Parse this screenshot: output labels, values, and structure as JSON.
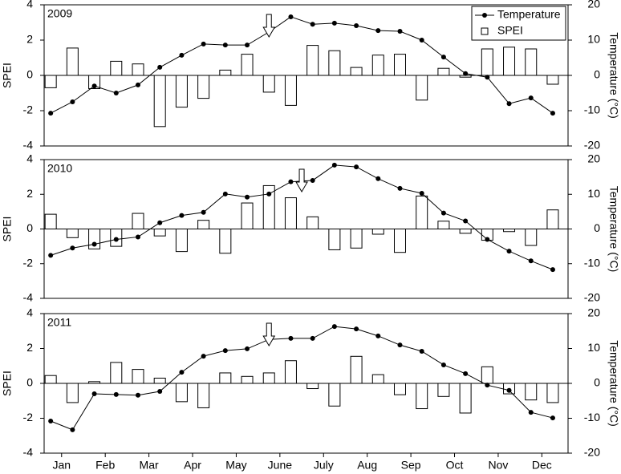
{
  "chart_data": [
    {
      "type": "combo",
      "title": "2009",
      "ylabel": "SPEI",
      "y2label": "Temperature (°C)",
      "x": [
        1,
        2,
        3,
        4,
        5,
        6,
        7,
        8,
        9,
        10,
        11,
        12,
        13,
        14,
        15,
        16,
        17,
        18,
        19,
        20,
        21,
        22,
        23,
        24
      ],
      "xlim": [
        0.7,
        24.7
      ],
      "ylim": [
        -4,
        4
      ],
      "yticks": [
        -4,
        -2,
        0,
        2,
        4
      ],
      "y2lim": [
        -20,
        20
      ],
      "y2ticks": [
        -20,
        -10,
        0,
        10,
        20
      ],
      "legend": "upper right",
      "series": [
        {
          "name": "Temperature",
          "style": "line",
          "axis": "y2",
          "color": "#000000",
          "values": [
            -10.7,
            -7.5,
            -3,
            -5,
            -2.7,
            2.3,
            5.7,
            8.9,
            8.6,
            8.6,
            12.3,
            16.6,
            14.5,
            14.8,
            14.1,
            12.7,
            12.5,
            10,
            5.2,
            0.5,
            -0.5,
            -8,
            -6.4,
            -10.7
          ]
        },
        {
          "name": "SPEI",
          "style": "bar",
          "color": "#ffffff",
          "values": [
            -0.7,
            1.55,
            -0.75,
            0.8,
            0.65,
            -2.9,
            -1.8,
            -1.3,
            0.3,
            1.2,
            -0.95,
            -1.7,
            1.7,
            1.4,
            0.45,
            1.15,
            1.2,
            -1.4,
            0.4,
            -0.1,
            1.5,
            1.6,
            1.5,
            -0.5
          ]
        }
      ]
    },
    {
      "type": "combo",
      "title": "2010",
      "ylabel": "SPEI",
      "y2label": "Temperature (°C)",
      "x": [
        1,
        2,
        3,
        4,
        5,
        6,
        7,
        8,
        9,
        10,
        11,
        12,
        13,
        14,
        15,
        16,
        17,
        18,
        19,
        20,
        21,
        22,
        23,
        24
      ],
      "xlim": [
        0.7,
        24.7
      ],
      "ylim": [
        -4,
        4
      ],
      "yticks": [
        -4,
        -2,
        0,
        2,
        4
      ],
      "y2lim": [
        -20,
        20
      ],
      "y2ticks": [
        -20,
        -10,
        0,
        10,
        20
      ],
      "series": [
        {
          "style": "line",
          "axis": "y2",
          "color": "#000000",
          "values": [
            -7.6,
            -5.5,
            -4.4,
            -3,
            -2.3,
            1.8,
            3.9,
            4.8,
            10.1,
            9.2,
            10.1,
            13.6,
            14,
            18.4,
            17.9,
            14.5,
            11.7,
            10.3,
            4.6,
            2.3,
            -3,
            -6.4,
            -9.2,
            -11.7
          ]
        },
        {
          "style": "bar",
          "color": "#ffffff",
          "values": [
            0.85,
            -0.5,
            -1.15,
            -1,
            0.9,
            -0.4,
            -1.3,
            0.5,
            -1.4,
            1.5,
            2.5,
            1.8,
            0.7,
            -1.2,
            -1.1,
            -0.3,
            -1.35,
            1.9,
            0.45,
            -0.25,
            -0.65,
            -0.15,
            -0.95,
            1.1
          ]
        }
      ]
    },
    {
      "type": "combo",
      "title": "2011",
      "ylabel": "SPEI",
      "y2label": "Temperature (°C)",
      "x": [
        1,
        2,
        3,
        4,
        5,
        6,
        7,
        8,
        9,
        10,
        11,
        12,
        13,
        14,
        15,
        16,
        17,
        18,
        19,
        20,
        21,
        22,
        23,
        24
      ],
      "xlim": [
        0.7,
        24.7
      ],
      "xticks": [
        {
          "value": 1.5,
          "label": "Jan"
        },
        {
          "value": 3.5,
          "label": "Feb"
        },
        {
          "value": 5.5,
          "label": "Mar"
        },
        {
          "value": 7.5,
          "label": "Apr"
        },
        {
          "value": 9.5,
          "label": "May"
        },
        {
          "value": 11.5,
          "label": "June"
        },
        {
          "value": 13.5,
          "label": "July"
        },
        {
          "value": 15.5,
          "label": "Aug"
        },
        {
          "value": 17.5,
          "label": "Sep"
        },
        {
          "value": 19.5,
          "label": "Oct"
        },
        {
          "value": 21.5,
          "label": "Nov"
        },
        {
          "value": 23.5,
          "label": "Dec"
        }
      ],
      "ylim": [
        -4,
        4
      ],
      "yticks": [
        -4,
        -2,
        0,
        2,
        4
      ],
      "y2lim": [
        -20,
        20
      ],
      "y2ticks": [
        -20,
        -10,
        0,
        10,
        20
      ],
      "series": [
        {
          "style": "line",
          "axis": "y2",
          "color": "#000000",
          "values": [
            -10.8,
            -13.3,
            -3,
            -3.2,
            -3.4,
            -2.3,
            3.2,
            7.8,
            9.4,
            9.9,
            12.6,
            12.9,
            12.9,
            16.3,
            15.6,
            13.6,
            11,
            9.2,
            5.3,
            2.8,
            -0.5,
            -2,
            -8.3,
            -9.9
          ]
        },
        {
          "style": "bar",
          "color": "#ffffff",
          "values": [
            0.45,
            -1.1,
            0.1,
            1.2,
            0.8,
            0.3,
            -1.05,
            -1.4,
            0.6,
            0.4,
            0.6,
            1.3,
            -0.3,
            -1.3,
            1.55,
            0.5,
            -0.65,
            -1.45,
            -0.75,
            -1.7,
            0.95,
            -0.6,
            -0.95,
            -1.1
          ]
        }
      ]
    }
  ]
}
